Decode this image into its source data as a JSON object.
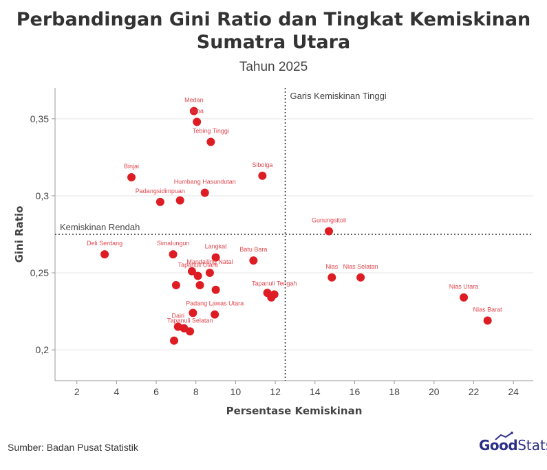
{
  "title_line1": "Perbandingan Gini Ratio dan Tingkat Kemiskinan",
  "title_line2": "Sumatra Utara",
  "subtitle": "Tahun 2025",
  "source": "Sumber: Badan Pusat Statistik",
  "logo": {
    "bold": "Good",
    "light": "Stats"
  },
  "colors": {
    "point": "#dd1c24",
    "label": "#e0474e",
    "grid": "#e6e6e6",
    "refline": "#333333"
  },
  "chart_data": {
    "type": "scatter",
    "xlabel": "Persentase Kemiskinan",
    "ylabel": "Gini Ratio",
    "xlim": [
      0.9,
      25
    ],
    "ylim": [
      0.18,
      0.37
    ],
    "xticks": [
      {
        "v": 2,
        "label": "2"
      },
      {
        "v": 4,
        "label": "4"
      },
      {
        "v": 6,
        "label": "6"
      },
      {
        "v": 8,
        "label": "8"
      },
      {
        "v": 10,
        "label": "10"
      },
      {
        "v": 12,
        "label": "12"
      },
      {
        "v": 14,
        "label": "14"
      },
      {
        "v": 16,
        "label": "16"
      },
      {
        "v": 18,
        "label": "18"
      },
      {
        "v": 20,
        "label": "20"
      },
      {
        "v": 22,
        "label": "22"
      },
      {
        "v": 24,
        "label": "24"
      }
    ],
    "yticks": [
      {
        "v": 0.2,
        "label": "0,2"
      },
      {
        "v": 0.25,
        "label": "0,25"
      },
      {
        "v": 0.3,
        "label": "0,3"
      },
      {
        "v": 0.35,
        "label": "0,35"
      }
    ],
    "grid": true,
    "reference_lines": [
      {
        "orientation": "vertical",
        "value": 12.5,
        "label": "Garis Kemiskinan Tinggi"
      },
      {
        "orientation": "horizontal",
        "value": 0.275,
        "label": "Kemiskinan Rendah"
      }
    ],
    "points": [
      {
        "name": "Medan",
        "x": 7.9,
        "y": 0.355
      },
      {
        "name": "Toba",
        "x": 8.05,
        "y": 0.348
      },
      {
        "name": "Tebing Tinggi",
        "x": 8.75,
        "y": 0.335
      },
      {
        "name": "Binjai",
        "x": 4.75,
        "y": 0.312
      },
      {
        "name": "Sibolga",
        "x": 11.35,
        "y": 0.313
      },
      {
        "name": "Humbang Hasundutan",
        "x": 8.45,
        "y": 0.302
      },
      {
        "name": "Padangsidimpuan",
        "x": 6.2,
        "y": 0.296
      },
      {
        "name": "",
        "x": 7.2,
        "y": 0.297
      },
      {
        "name": "Gunungsitoli",
        "x": 14.7,
        "y": 0.277
      },
      {
        "name": "Deli Serdang",
        "x": 3.4,
        "y": 0.262
      },
      {
        "name": "Simalungun",
        "x": 6.85,
        "y": 0.262
      },
      {
        "name": "Langkat",
        "x": 9.0,
        "y": 0.26
      },
      {
        "name": "Batu Bara",
        "x": 10.9,
        "y": 0.258
      },
      {
        "name": "Mandailing Natal",
        "x": 8.7,
        "y": 0.25
      },
      {
        "name": "",
        "x": 7.8,
        "y": 0.251
      },
      {
        "name": "Tapanuli Utara",
        "x": 8.1,
        "y": 0.248
      },
      {
        "name": "",
        "x": 8.2,
        "y": 0.242
      },
      {
        "name": "",
        "x": 7.0,
        "y": 0.242
      },
      {
        "name": "",
        "x": 9.0,
        "y": 0.239
      },
      {
        "name": "Nias",
        "x": 14.85,
        "y": 0.247
      },
      {
        "name": "Nias Selatan",
        "x": 16.3,
        "y": 0.247
      },
      {
        "name": "Tapanuli Tengah",
        "x": 11.95,
        "y": 0.236
      },
      {
        "name": "",
        "x": 11.6,
        "y": 0.237
      },
      {
        "name": "",
        "x": 11.8,
        "y": 0.234
      },
      {
        "name": "Nias Utara",
        "x": 21.5,
        "y": 0.234
      },
      {
        "name": "Padang Lawas Utara",
        "x": 8.95,
        "y": 0.223
      },
      {
        "name": "",
        "x": 7.85,
        "y": 0.224
      },
      {
        "name": "Nias Barat",
        "x": 22.7,
        "y": 0.219
      },
      {
        "name": "Dairi",
        "x": 7.1,
        "y": 0.215
      },
      {
        "name": "",
        "x": 7.4,
        "y": 0.214
      },
      {
        "name": "Tapanuli Selatan",
        "x": 7.7,
        "y": 0.212
      },
      {
        "name": "",
        "x": 6.9,
        "y": 0.206
      }
    ]
  }
}
